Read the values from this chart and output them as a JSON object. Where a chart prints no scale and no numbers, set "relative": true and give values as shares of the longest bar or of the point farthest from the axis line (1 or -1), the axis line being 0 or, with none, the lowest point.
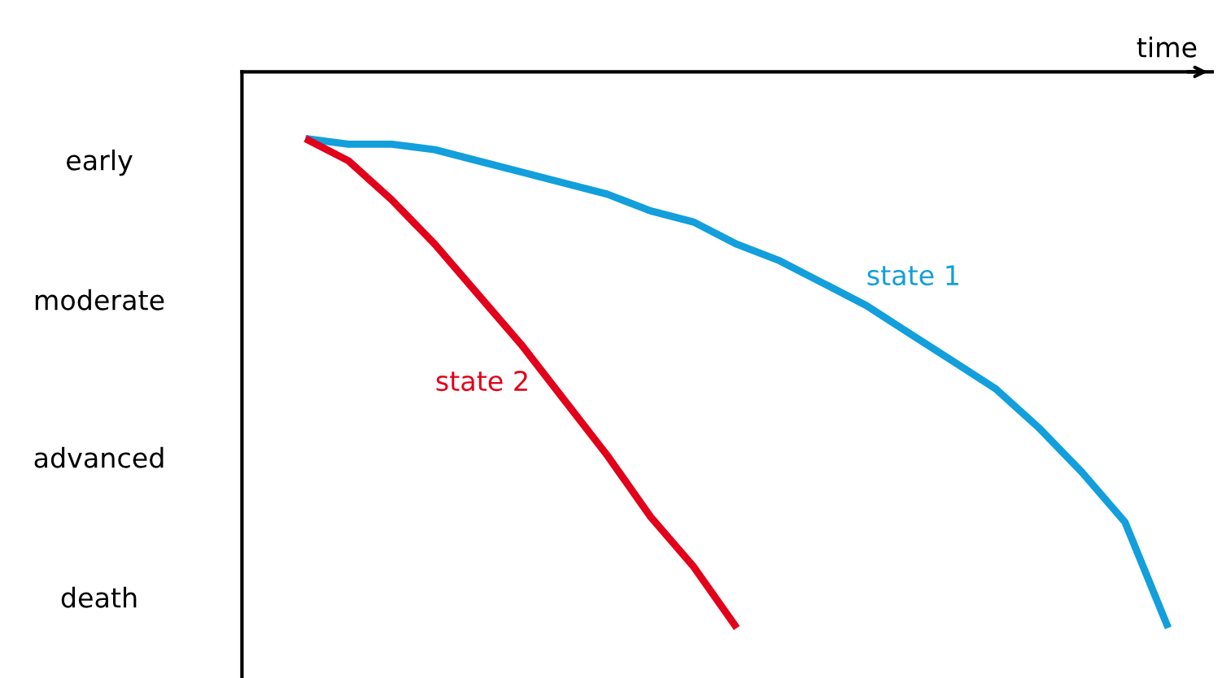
{
  "chart_data": {
    "type": "line",
    "xlabel": "time",
    "relative": true,
    "categories": [
      null,
      null,
      null,
      null,
      null,
      null,
      null,
      null,
      null,
      null,
      null,
      null,
      null,
      null,
      null,
      null,
      null,
      null,
      null,
      null,
      null
    ],
    "annotations": [
      "early",
      "moderate",
      "advanced",
      "death"
    ],
    "series": [
      {
        "name": "state 1",
        "color": "#129fdc",
        "values": [
          -0.12,
          -0.13,
          -0.13,
          -0.14,
          -0.16,
          -0.18,
          -0.2,
          -0.22,
          -0.25,
          -0.27,
          -0.31,
          -0.34,
          -0.38,
          -0.42,
          -0.47,
          -0.52,
          -0.57,
          -0.64,
          -0.72,
          -0.81,
          -1.0
        ]
      },
      {
        "name": "state 2",
        "color": "#e2001a",
        "values": [
          -0.12,
          -0.16,
          -0.23,
          -0.31,
          -0.4,
          -0.49,
          -0.59,
          -0.69,
          -0.8,
          -0.89,
          -1.0,
          null,
          null,
          null,
          null,
          null,
          null,
          null,
          null,
          null,
          null
        ]
      }
    ],
    "grid": false,
    "legend": false,
    "marker": "none",
    "line_style": "solid"
  }
}
